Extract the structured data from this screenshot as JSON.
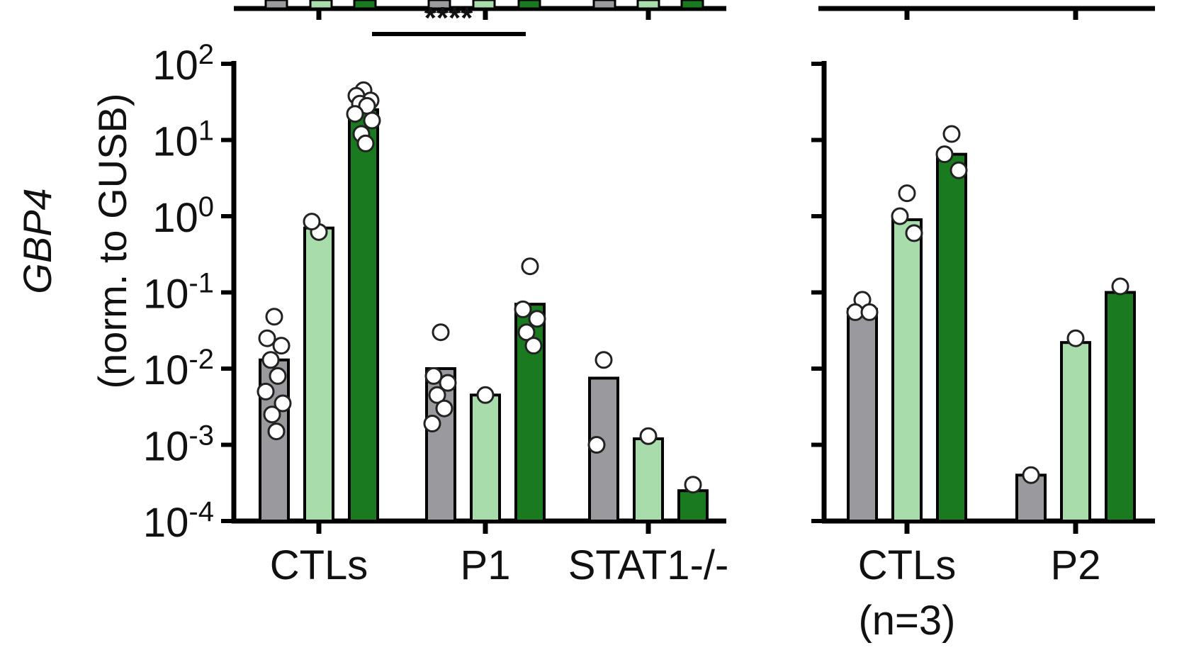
{
  "colors": {
    "gray": "#9a9a9e",
    "light_green": "#a9dcab",
    "dark_green": "#1a7a1f",
    "axis": "#000000",
    "point_fill": "#ffffff"
  },
  "chart_data": [
    {
      "type": "bar",
      "panel": "left",
      "ylabel_italic": "GBP4",
      "ylabel": "(norm. to GUSB)",
      "yscale": "log",
      "ylim": [
        0.0001,
        100
      ],
      "ytick_labels": [
        {
          "base": "10",
          "exp": "2"
        },
        {
          "base": "10",
          "exp": "1"
        },
        {
          "base": "10",
          "exp": "0"
        },
        {
          "base": "10",
          "exp": "-1"
        },
        {
          "base": "10",
          "exp": "-2"
        },
        {
          "base": "10",
          "exp": "-3"
        },
        {
          "base": "10",
          "exp": "-4"
        }
      ],
      "categories": [
        "CTLs",
        "P1",
        "STAT1-/-"
      ],
      "series_count": 3,
      "values": [
        [
          0.013,
          0.7,
          25
        ],
        [
          0.01,
          0.0045,
          0.07
        ],
        [
          0.0075,
          0.0012,
          0.00025
        ]
      ],
      "points": [
        [
          [
            0.048,
            0.025,
            0.02,
            0.013,
            0.008,
            0.005,
            0.0035,
            0.0025,
            0.0015
          ],
          [
            0.62,
            0.85
          ],
          [
            45,
            38,
            33,
            30,
            28,
            22,
            18,
            12,
            9
          ]
        ],
        [
          [
            0.03,
            0.008,
            0.0065,
            0.0045,
            0.003,
            0.0019
          ],
          [
            0.0045
          ],
          [
            0.22,
            0.06,
            0.045,
            0.03,
            0.02
          ]
        ],
        [
          [
            0.013,
            0.001
          ],
          [
            0.0013
          ],
          [
            0.0003
          ]
        ]
      ],
      "significance": "****"
    },
    {
      "type": "bar",
      "panel": "right",
      "categories": [
        "CTLs",
        "P2"
      ],
      "category_sublabels": [
        "(n=3)",
        ""
      ],
      "series_count": 3,
      "values": [
        [
          0.06,
          0.9,
          6.5
        ],
        [
          0.0004,
          0.022,
          0.1
        ]
      ],
      "points": [
        [
          [
            0.08,
            0.055,
            0.055
          ],
          [
            2.0,
            1.0,
            0.6
          ],
          [
            12,
            6.5,
            4.0
          ]
        ],
        [
          [
            0.0004
          ],
          [
            0.025
          ],
          [
            0.12
          ]
        ]
      ]
    }
  ]
}
